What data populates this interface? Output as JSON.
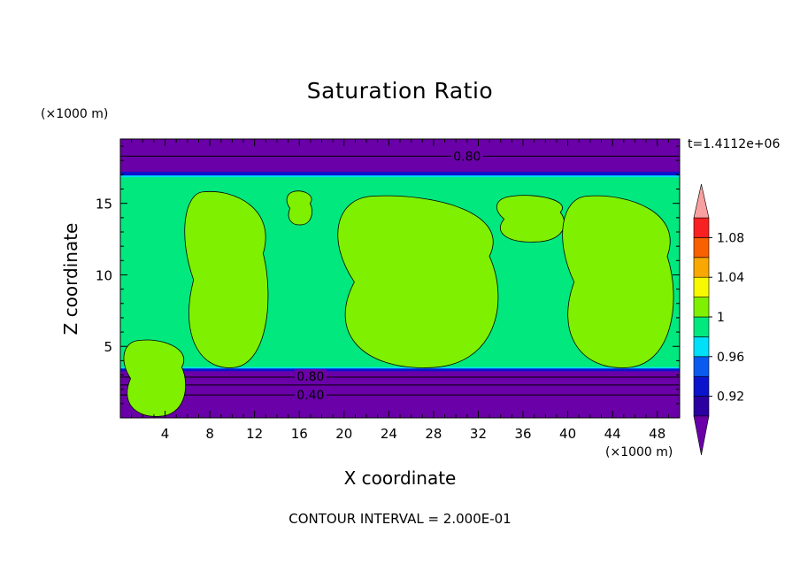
{
  "chart_data": {
    "type": "heatmap",
    "title": "Saturation Ratio",
    "xlabel": "X coordinate",
    "ylabel": "Z coordinate",
    "x_unit": "(×1000 m)",
    "y_unit": "(×1000 m)",
    "time_label": "t=1.4112e+06",
    "contour_interval_label": "CONTOUR INTERVAL = 2.000E-01",
    "xlim": [
      0,
      50
    ],
    "ylim": [
      0,
      19.5
    ],
    "x_ticks": [
      4,
      8,
      12,
      16,
      20,
      24,
      28,
      32,
      36,
      40,
      44,
      48
    ],
    "y_ticks": [
      5,
      10,
      15
    ],
    "colorbar": {
      "tick_labels": [
        "1.08",
        "1.04",
        "1",
        "0.96",
        "0.92"
      ],
      "levels": [
        0.92,
        0.94,
        0.96,
        0.98,
        1.0,
        1.02,
        1.04,
        1.06,
        1.08
      ],
      "colors": [
        "#6a00a8",
        "#2a00a0",
        "#0a14cc",
        "#0a5af0",
        "#00e0f8",
        "#00e87e",
        "#7ff000",
        "#f8f800",
        "#f8a800",
        "#f86000",
        "#f82020",
        "#f8a0a0"
      ]
    },
    "layers": [
      {
        "name": "upper dry layer",
        "z_range": [
          16.9,
          19.5
        ],
        "color": "#6a00a8"
      },
      {
        "name": "near-saturated layer",
        "z_range": [
          3.5,
          16.9
        ],
        "color": "#00e87e"
      },
      {
        "name": "lower dry layer",
        "z_range": [
          0,
          3.5
        ],
        "color": "#6a00a8"
      }
    ],
    "contour_labels": [
      {
        "text": "0.80",
        "x": 31.0,
        "z": 18.3
      },
      {
        "text": "0.80",
        "x": 17.0,
        "z": 2.9
      },
      {
        "text": "0.40",
        "x": 17.0,
        "z": 1.6
      }
    ],
    "supersaturated_regions": [
      {
        "x": [
          0,
          6.1,
          0.1,
          5.4
        ],
        "color": "#7ff000"
      },
      {
        "x": [
          5.3,
          13.6,
          3.5,
          15.8
        ],
        "color": "#7ff000"
      },
      {
        "x": [
          14.8,
          17.2,
          13.5,
          15.8
        ],
        "color": "#7ff000"
      },
      {
        "x": [
          18.5,
          34.6,
          3.5,
          15.5
        ],
        "color": "#7ff000"
      },
      {
        "x": [
          33.3,
          40.0,
          12.3,
          15.5
        ],
        "color": "#7ff000"
      },
      {
        "x": [
          38.9,
          50.0,
          3.5,
          15.5
        ],
        "color": "#7ff000"
      }
    ]
  }
}
